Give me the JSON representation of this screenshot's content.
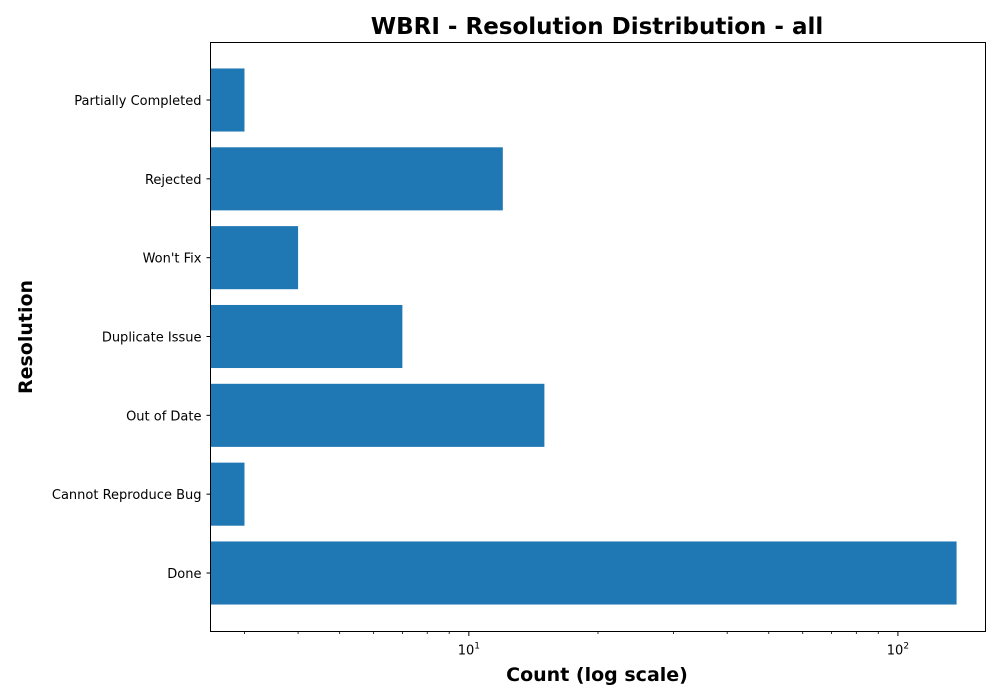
{
  "chart_data": {
    "type": "bar",
    "orientation": "horizontal",
    "title": "WBRI - Resolution Distribution - all",
    "xlabel": "Count (log scale)",
    "ylabel": "Resolution",
    "x_scale": "log",
    "xlim": [
      2.5,
      160
    ],
    "x_ticks": [
      {
        "value": 10,
        "base": "10",
        "exp": "1"
      },
      {
        "value": 100,
        "base": "10",
        "exp": "2"
      }
    ],
    "categories": [
      "Done",
      "Cannot Reproduce Bug",
      "Out of Date",
      "Duplicate Issue",
      "Won't Fix",
      "Rejected",
      "Partially Completed"
    ],
    "values": [
      137,
      3,
      15,
      7,
      4,
      12,
      3
    ],
    "bar_color": "#1f77b4",
    "grid": false,
    "legend": "none"
  }
}
